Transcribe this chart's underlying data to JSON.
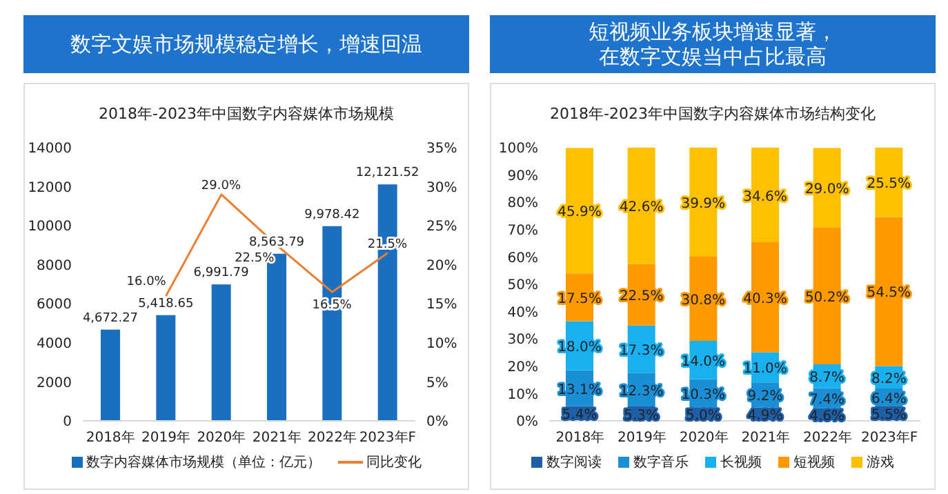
{
  "chart_data": [
    {
      "type": "bar",
      "title": "数字文娱市场规模稳定增长，增速回温",
      "subtitle": "2018年-2023年中国数字内容媒体市场规模",
      "categories": [
        "2018年",
        "2019年",
        "2020年",
        "2021年",
        "2022年",
        "2023年F"
      ],
      "series": [
        {
          "name": "数字内容媒体市场规模（单位：亿元）",
          "color": "#1a6fc1",
          "values": [
            4672.27,
            5418.65,
            6991.79,
            8563.79,
            9978.42,
            12121.52
          ],
          "value_labels": [
            "4,672.27",
            "5,418.65",
            "6,991.79",
            "8,563.79",
            "9,978.42",
            "12,121.52"
          ]
        },
        {
          "name": "同比变化",
          "type": "line",
          "axis": "y2",
          "color": "#ed7d31",
          "values": [
            null,
            16.0,
            29.0,
            22.5,
            16.5,
            21.5
          ],
          "value_labels": [
            null,
            "16.0%",
            "29.0%",
            "22.5%",
            "16.5%",
            "21.5%"
          ]
        }
      ],
      "ylim": [
        0,
        14000
      ],
      "yticks": [
        0,
        2000,
        4000,
        6000,
        8000,
        10000,
        12000,
        14000
      ],
      "y2lim": [
        0,
        35
      ],
      "y2ticks": [
        {
          "value": 0,
          "label": "0%"
        },
        {
          "value": 5,
          "label": "5%"
        },
        {
          "value": 10,
          "label": "10%"
        },
        {
          "value": 15,
          "label": "15%"
        },
        {
          "value": 20,
          "label": "20%"
        },
        {
          "value": 25,
          "label": "25%"
        },
        {
          "value": 30,
          "label": "30%"
        },
        {
          "value": 35,
          "label": "35%"
        }
      ],
      "legend": "bottom",
      "marker": "none"
    },
    {
      "type": "bar",
      "title": "短视频业务板块增速显著，在数字文娱当中占比最高",
      "subtitle": "2018年-2023年中国数字内容媒体市场结构变化",
      "categories": [
        "2018年",
        "2019年",
        "2020年",
        "2021年",
        "2022年",
        "2023年F"
      ],
      "stacked": true,
      "series": [
        {
          "name": "数字阅读",
          "color": "#1f5fa8",
          "values": [
            5.4,
            5.3,
            5.0,
            4.9,
            4.6,
            5.5
          ],
          "value_labels": [
            "5.4%",
            "5.3%",
            "5.0%",
            "4.9%",
            "4.6%",
            "5.5%"
          ]
        },
        {
          "name": "数字音乐",
          "color": "#1a8fd6",
          "values": [
            13.1,
            12.3,
            10.3,
            9.2,
            7.4,
            6.4
          ],
          "value_labels": [
            "13.1%",
            "12.3%",
            "10.3%",
            "9.2%",
            "7.4%",
            "6.4%"
          ]
        },
        {
          "name": "长视频",
          "color": "#1ab0f0",
          "values": [
            18.0,
            17.3,
            14.0,
            11.0,
            8.7,
            8.2
          ],
          "value_labels": [
            "18.0%",
            "17.3%",
            "14.0%",
            "11.0%",
            "8.7%",
            "8.2%"
          ]
        },
        {
          "name": "短视频",
          "color": "#ff9900",
          "values": [
            17.5,
            22.5,
            30.8,
            40.3,
            50.2,
            54.5
          ],
          "value_labels": [
            "17.5%",
            "22.5%",
            "30.8%",
            "40.3%",
            "50.2%",
            "54.5%"
          ]
        },
        {
          "name": "游戏",
          "color": "#ffc000",
          "values": [
            45.9,
            42.6,
            39.9,
            34.6,
            29.0,
            25.5
          ],
          "value_labels": [
            "45.9%",
            "42.6%",
            "39.9%",
            "34.6%",
            "29.0%",
            "25.5%"
          ]
        }
      ],
      "ylim": [
        0,
        100
      ],
      "yticks": [
        {
          "value": 0,
          "label": "0%"
        },
        {
          "value": 10,
          "label": "10%"
        },
        {
          "value": 20,
          "label": "20%"
        },
        {
          "value": 30,
          "label": "30%"
        },
        {
          "value": 40,
          "label": "40%"
        },
        {
          "value": 50,
          "label": "50%"
        },
        {
          "value": 60,
          "label": "60%"
        },
        {
          "value": 70,
          "label": "70%"
        },
        {
          "value": 80,
          "label": "80%"
        },
        {
          "value": 90,
          "label": "90%"
        },
        {
          "value": 100,
          "label": "100%"
        }
      ],
      "legend": "bottom"
    }
  ]
}
